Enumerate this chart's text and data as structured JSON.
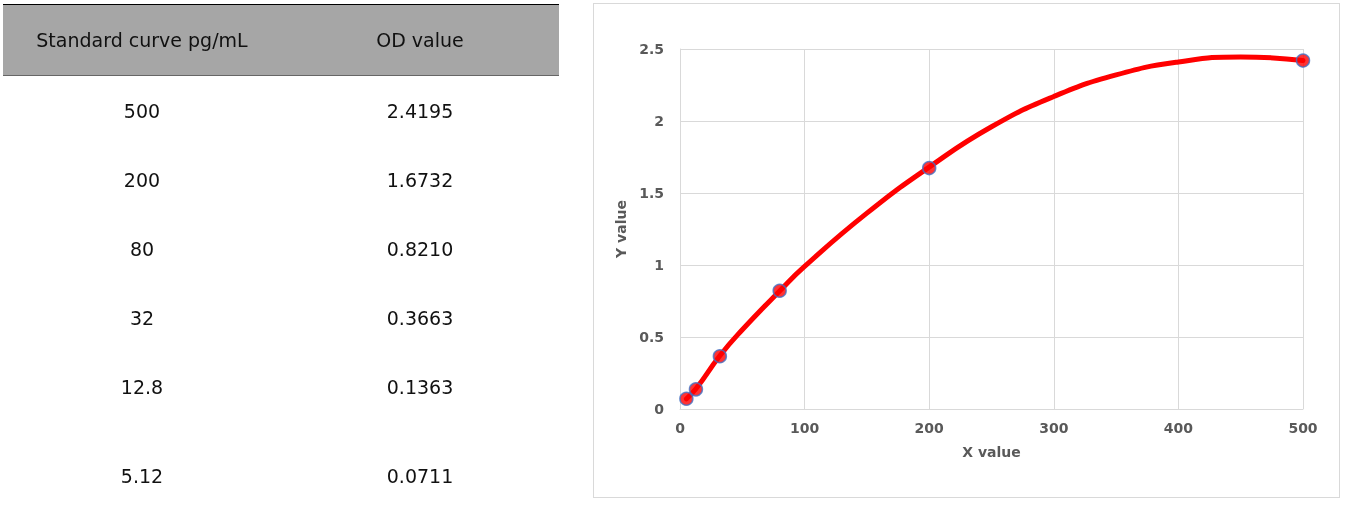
{
  "chart_data": [
    {
      "type": "other",
      "annotations": [
        "Standard curve pg/mL",
        "OD value",
        "500",
        "2.4195",
        "200",
        "1.6732",
        "80",
        "0.8210",
        "32",
        "0.3663",
        "12.8",
        "0.1363",
        "5.12",
        "0.0711"
      ]
    },
    {
      "type": "scatter",
      "xlabel": "X value",
      "ylabel": "Y value",
      "series": [
        {
          "type": "scatter",
          "color": "#ff0000",
          "marker": "circle",
          "x": [
            500,
            200,
            80,
            32,
            12.8,
            5.12
          ],
          "values": [
            2.4195,
            1.6732,
            0.821,
            0.3663,
            0.1363,
            0.0711
          ]
        },
        {
          "type": "line",
          "color": "#ff0000",
          "marker": "none",
          "line_style": "solid",
          "x": [
            5.12,
            12.8,
            32,
            50,
            80,
            100,
            150,
            200,
            250,
            300,
            350,
            400,
            450,
            500
          ],
          "values": [
            0.07,
            0.14,
            0.37,
            0.55,
            0.82,
            0.99,
            1.36,
            1.68,
            1.96,
            2.17,
            2.32,
            2.41,
            2.445,
            2.42
          ]
        }
      ],
      "xlim": [
        0,
        500
      ],
      "xticks": [
        0,
        100,
        200,
        300,
        400,
        500
      ],
      "ylim": [
        0,
        2.5
      ],
      "yticks": [
        0,
        0.5,
        1,
        1.5,
        2,
        2.5
      ],
      "grid": true
    }
  ]
}
